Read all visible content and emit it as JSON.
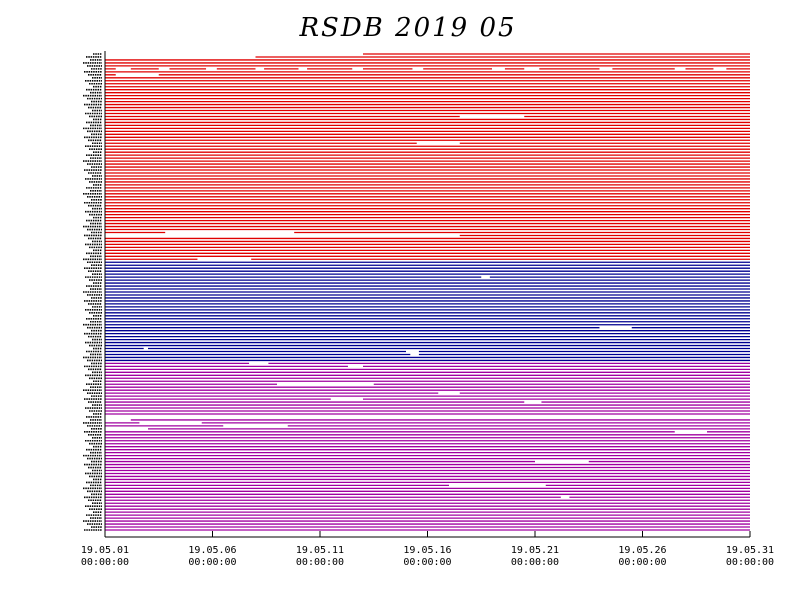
{
  "chart_data": {
    "type": "timeline",
    "title": "RSDB  2019  05",
    "x_range_days": [
      0,
      30
    ],
    "x_ticks": [
      {
        "day": 0,
        "date": "19.05.01",
        "time": "00:00:00"
      },
      {
        "day": 5,
        "date": "19.05.06",
        "time": "00:00:00"
      },
      {
        "day": 10,
        "date": "19.05.11",
        "time": "00:00:00"
      },
      {
        "day": 15,
        "date": "19.05.16",
        "time": "00:00:00"
      },
      {
        "day": 20,
        "date": "19.05.21",
        "time": "00:00:00"
      },
      {
        "day": 25,
        "date": "19.05.26",
        "time": "00:00:00"
      },
      {
        "day": 30,
        "date": "19.05.31",
        "time": "00:00:00"
      }
    ],
    "groups": [
      {
        "color": "#e00000",
        "rows": 70
      },
      {
        "color": "#000090",
        "rows": 34
      },
      {
        "color": "#a000a0",
        "rows": 57
      }
    ],
    "gaps": [
      {
        "row": 0,
        "start": 0,
        "end": 12
      },
      {
        "row": 1,
        "start": 0,
        "end": 7
      },
      {
        "row": 5,
        "start": 0.5,
        "end": 1.2
      },
      {
        "row": 5,
        "start": 2.5,
        "end": 3.0
      },
      {
        "row": 5,
        "start": 4.7,
        "end": 5.2
      },
      {
        "row": 5,
        "start": 7.0,
        "end": 7.4
      },
      {
        "row": 5,
        "start": 9.0,
        "end": 9.4
      },
      {
        "row": 5,
        "start": 11.5,
        "end": 12.0
      },
      {
        "row": 5,
        "start": 14.3,
        "end": 14.8
      },
      {
        "row": 5,
        "start": 18.0,
        "end": 18.6
      },
      {
        "row": 5,
        "start": 19.5,
        "end": 20.2
      },
      {
        "row": 5,
        "start": 23.0,
        "end": 23.6
      },
      {
        "row": 5,
        "start": 26.5,
        "end": 27.0
      },
      {
        "row": 5,
        "start": 28.3,
        "end": 28.9
      },
      {
        "row": 7,
        "start": 0.5,
        "end": 2.5
      },
      {
        "row": 21,
        "start": 16.5,
        "end": 19.5
      },
      {
        "row": 30,
        "start": 14.5,
        "end": 16.5
      },
      {
        "row": 60,
        "start": 2.8,
        "end": 8.8
      },
      {
        "row": 61,
        "start": 0,
        "end": 16.5
      },
      {
        "row": 69,
        "start": 4.3,
        "end": 6.8
      },
      {
        "row": 75,
        "start": 17.5,
        "end": 17.9
      },
      {
        "row": 92,
        "start": 23.0,
        "end": 24.5
      },
      {
        "row": 99,
        "start": 1.8,
        "end": 2.0
      },
      {
        "row": 100,
        "start": 14.0,
        "end": 14.6
      },
      {
        "row": 101,
        "start": 14.2,
        "end": 14.6
      },
      {
        "row": 104,
        "start": 6.7,
        "end": 7.6
      },
      {
        "row": 105,
        "start": 11.3,
        "end": 12.0
      },
      {
        "row": 111,
        "start": 8.0,
        "end": 12.5
      },
      {
        "row": 114,
        "start": 15.5,
        "end": 16.5
      },
      {
        "row": 116,
        "start": 10.5,
        "end": 12.0
      },
      {
        "row": 117,
        "start": 19.5,
        "end": 20.3
      },
      {
        "row": 122,
        "start": 0,
        "end": 30
      },
      {
        "row": 123,
        "start": 0,
        "end": 1.2
      },
      {
        "row": 124,
        "start": 1.6,
        "end": 4.5
      },
      {
        "row": 125,
        "start": 5.5,
        "end": 8.5
      },
      {
        "row": 126,
        "start": 0,
        "end": 2.0
      },
      {
        "row": 127,
        "start": 26.5,
        "end": 28.0
      },
      {
        "row": 137,
        "start": 20.0,
        "end": 22.5
      },
      {
        "row": 145,
        "start": 16.0,
        "end": 20.5
      },
      {
        "row": 149,
        "start": 21.2,
        "end": 21.6
      }
    ]
  }
}
